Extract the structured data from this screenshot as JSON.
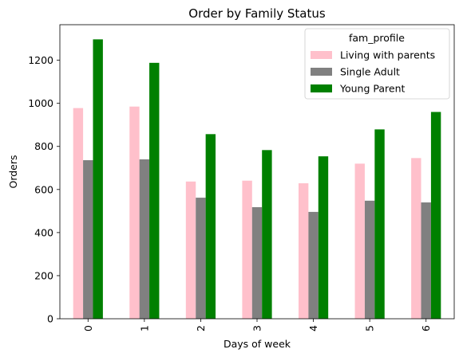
{
  "chart_data": {
    "type": "bar",
    "title": "Order by Family Status",
    "xlabel": "Days of week",
    "ylabel": "Orders",
    "categories": [
      "0",
      "1",
      "2",
      "3",
      "4",
      "5",
      "6"
    ],
    "ylim": [
      0,
      1365
    ],
    "yticks": [
      0,
      200,
      400,
      600,
      800,
      1000,
      1200
    ],
    "grid": false,
    "legend": {
      "title": "fam_profile",
      "placement": "top-right"
    },
    "series": [
      {
        "name": "Living with parents",
        "color": "#ffc0cb",
        "values": [
          978,
          985,
          637,
          641,
          629,
          720,
          746
        ]
      },
      {
        "name": "Single Adult",
        "color": "#808080",
        "values": [
          736,
          740,
          562,
          518,
          496,
          548,
          540
        ]
      },
      {
        "name": "Young Parent",
        "color": "#008000",
        "values": [
          1297,
          1188,
          857,
          783,
          754,
          879,
          960
        ]
      }
    ]
  }
}
